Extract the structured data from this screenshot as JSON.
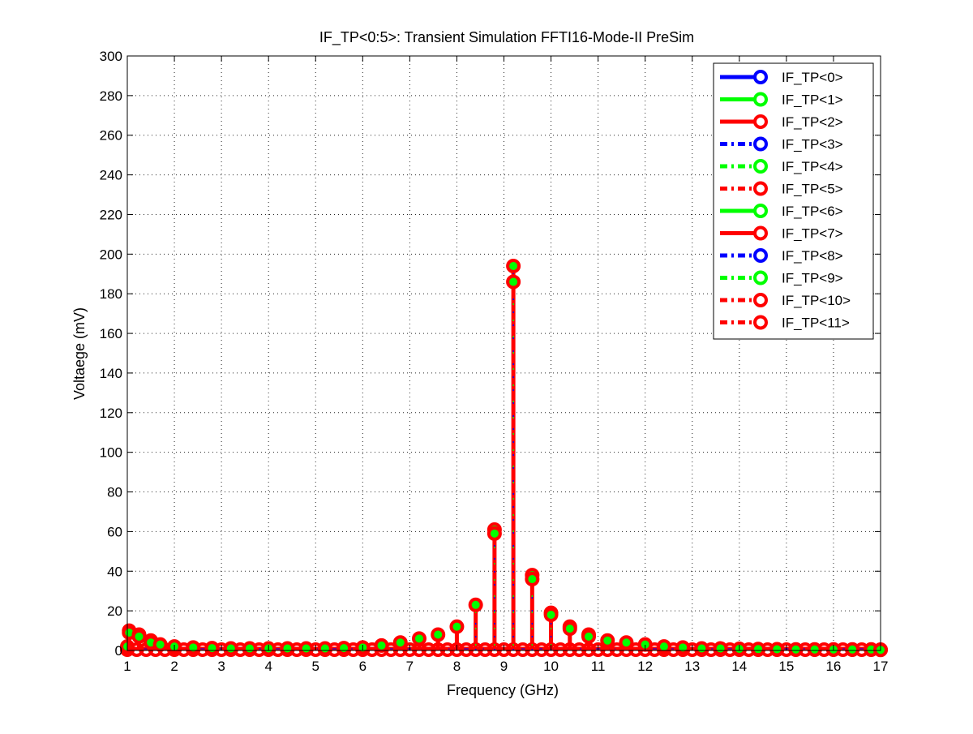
{
  "chart_data": {
    "type": "stem",
    "title": "IF_TP<0:5>: Transient Simulation FFTI16-Mode-II PreSim",
    "xlabel": "Frequency (GHz)",
    "ylabel": "Voltaege (mV)",
    "xlim": [
      1,
      17
    ],
    "ylim": [
      0,
      300
    ],
    "xticks": [
      "1",
      "2",
      "3",
      "4",
      "5",
      "6",
      "7",
      "8",
      "9",
      "10",
      "11",
      "12",
      "13",
      "14",
      "15",
      "16",
      "17"
    ],
    "yticks": [
      "0",
      "20",
      "40",
      "60",
      "80",
      "100",
      "120",
      "140",
      "160",
      "180",
      "200",
      "220",
      "240",
      "260",
      "280",
      "300"
    ],
    "grid": true,
    "legend_position": "top-right",
    "series": [
      {
        "name": "IF_TP<0>",
        "color": "#0000ff",
        "style": "solid"
      },
      {
        "name": "IF_TP<1>",
        "color": "#00ff00",
        "style": "solid"
      },
      {
        "name": "IF_TP<2>",
        "color": "#ff0000",
        "style": "solid"
      },
      {
        "name": "IF_TP<3>",
        "color": "#0000ff",
        "style": "dashdot"
      },
      {
        "name": "IF_TP<4>",
        "color": "#00ff00",
        "style": "dashdot"
      },
      {
        "name": "IF_TP<5>",
        "color": "#ff0000",
        "style": "dashdot"
      },
      {
        "name": "IF_TP<6>",
        "color": "#00ff00",
        "style": "solid"
      },
      {
        "name": "IF_TP<7>",
        "color": "#ff0000",
        "style": "solid"
      },
      {
        "name": "IF_TP<8>",
        "color": "#0000ff",
        "style": "dashdot"
      },
      {
        "name": "IF_TP<9>",
        "color": "#00ff00",
        "style": "dashdot"
      },
      {
        "name": "IF_TP<10>",
        "color": "#ff0000",
        "style": "dashdot"
      },
      {
        "name": "IF_TP<11>",
        "color": "#ff0000",
        "style": "dashdot"
      }
    ],
    "stems": [
      {
        "x": 1.0,
        "y": [
          2
        ]
      },
      {
        "x": 1.04,
        "y": [
          10,
          9
        ]
      },
      {
        "x": 1.25,
        "y": [
          8,
          7
        ]
      },
      {
        "x": 1.5,
        "y": [
          5,
          4
        ]
      },
      {
        "x": 1.7,
        "y": [
          3
        ]
      },
      {
        "x": 2.0,
        "y": [
          2
        ]
      },
      {
        "x": 2.4,
        "y": [
          1.5
        ]
      },
      {
        "x": 2.8,
        "y": [
          1.2
        ]
      },
      {
        "x": 3.2,
        "y": [
          1
        ]
      },
      {
        "x": 3.6,
        "y": [
          1
        ]
      },
      {
        "x": 4.0,
        "y": [
          1
        ]
      },
      {
        "x": 4.4,
        "y": [
          1
        ]
      },
      {
        "x": 4.8,
        "y": [
          1
        ]
      },
      {
        "x": 5.2,
        "y": [
          1
        ]
      },
      {
        "x": 5.6,
        "y": [
          1.2
        ]
      },
      {
        "x": 6.0,
        "y": [
          1.5
        ]
      },
      {
        "x": 6.4,
        "y": [
          2.5
        ]
      },
      {
        "x": 6.8,
        "y": [
          4
        ]
      },
      {
        "x": 7.2,
        "y": [
          6
        ]
      },
      {
        "x": 7.6,
        "y": [
          8
        ]
      },
      {
        "x": 8.0,
        "y": [
          12
        ]
      },
      {
        "x": 8.4,
        "y": [
          23
        ]
      },
      {
        "x": 8.8,
        "y": [
          61,
          59
        ]
      },
      {
        "x": 9.2,
        "y": [
          194,
          186
        ]
      },
      {
        "x": 9.6,
        "y": [
          38,
          36
        ]
      },
      {
        "x": 10.0,
        "y": [
          19,
          18
        ]
      },
      {
        "x": 10.4,
        "y": [
          12,
          11
        ]
      },
      {
        "x": 10.8,
        "y": [
          8,
          7
        ]
      },
      {
        "x": 11.2,
        "y": [
          5
        ]
      },
      {
        "x": 11.6,
        "y": [
          4
        ]
      },
      {
        "x": 12.0,
        "y": [
          3
        ]
      },
      {
        "x": 12.4,
        "y": [
          2
        ]
      },
      {
        "x": 12.8,
        "y": [
          1.5
        ]
      },
      {
        "x": 13.2,
        "y": [
          1
        ]
      },
      {
        "x": 13.6,
        "y": [
          1
        ]
      },
      {
        "x": 14.0,
        "y": [
          0.8
        ]
      },
      {
        "x": 14.4,
        "y": [
          0.7
        ]
      },
      {
        "x": 14.8,
        "y": [
          0.6
        ]
      },
      {
        "x": 15.2,
        "y": [
          0.5
        ]
      },
      {
        "x": 15.6,
        "y": [
          0.5
        ]
      },
      {
        "x": 16.0,
        "y": [
          0.5
        ]
      },
      {
        "x": 16.4,
        "y": [
          0.5
        ]
      },
      {
        "x": 16.8,
        "y": [
          0.5
        ]
      },
      {
        "x": 17.0,
        "y": [
          0.3
        ]
      }
    ],
    "baseline_markers_x": [
      1.0,
      1.2,
      1.4,
      1.6,
      1.8,
      2.0,
      2.2,
      2.4,
      2.6,
      2.8,
      3.0,
      3.2,
      3.4,
      3.6,
      3.8,
      4.0,
      4.2,
      4.4,
      4.6,
      4.8,
      5.0,
      5.2,
      5.4,
      5.6,
      5.8,
      6.0,
      6.2,
      6.4,
      6.6,
      6.8,
      7.0,
      7.2,
      7.4,
      7.6,
      7.8,
      8.0,
      8.2,
      8.4,
      8.6,
      8.8,
      9.0,
      9.2,
      9.4,
      9.6,
      9.8,
      10.0,
      10.2,
      10.4,
      10.6,
      10.8,
      11.0,
      11.2,
      11.4,
      11.6,
      11.8,
      12.0,
      12.2,
      12.4,
      12.6,
      12.8,
      13.0,
      13.2,
      13.4,
      13.6,
      13.8,
      14.0,
      14.2,
      14.4,
      14.6,
      14.8,
      15.0,
      15.2,
      15.4,
      15.6,
      15.8,
      16.0,
      16.2,
      16.4,
      16.6,
      16.8,
      17.0
    ]
  }
}
